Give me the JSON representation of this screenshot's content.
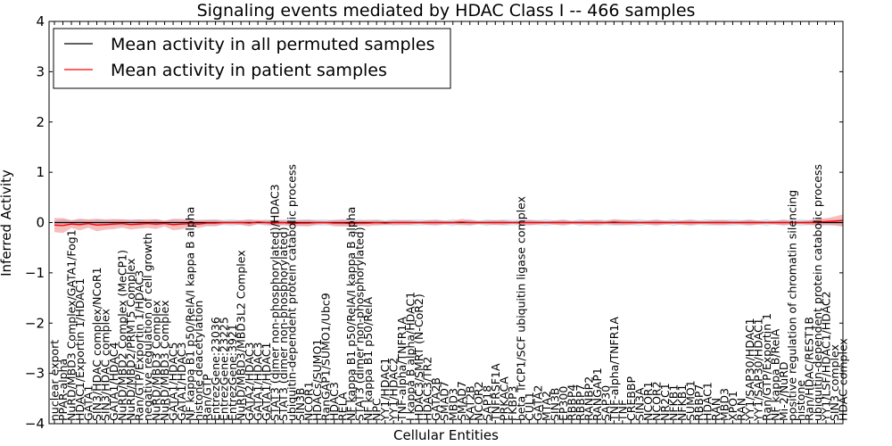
{
  "chart_data": {
    "type": "line",
    "title": "Signaling events mediated by HDAC Class I -- 466 samples",
    "xlabel": "Cellular Entities",
    "ylabel": "Inferred Activity",
    "ylim": [
      -4,
      4
    ],
    "yticks": [
      -4,
      -3,
      -2,
      -1,
      0,
      1,
      2,
      3,
      4
    ],
    "grid": false,
    "legend_position": "top-left",
    "categories": [
      "nuclear export",
      "PPAR-alpha",
      "NuRD/MBD3 Complex/GATA1/Fog1",
      "HDAC1/Exportin 1/HDAC1",
      "GATA1",
      "SIN3/HDAC complex/NCoR1",
      "SIN3/HDAC complex",
      "GATA1/HDAC4",
      "NuRD/MBD2 Complex (MeCP1)",
      "NuRD/MBD2/PRMT5 Complex",
      "Ran/GTP/Exportin 1/HDAC3",
      "negative regulation of cell growth",
      "NuRD/MBD3 Complex",
      "NuRD/MBD3 Complex",
      "GATA1/HDAC5",
      "GATA1/HDAC3",
      "NF kappa B1 p50/RelA/I kappa B alpha",
      "histone deacetylation",
      "Ran/GTP",
      "EntrezGene:23036",
      "EntrezGene:23225",
      "EntrezGene:3921",
      "NuRD/MBD3/MBD3L2 Complex",
      "GATA2/HDAC3",
      "GATA1/HDAC3",
      "GATA1/HDAC1",
      "STAT3 (dimer non-phosphorylated)/HDAC3",
      "STAT3 (dimer non-phosphorylated)",
      "ubiquitin-dependent protein catabolic process",
      "SIN3B",
      "NCOR1",
      "HDACs/SUMO1",
      "RanGAP1/SUMO1/Ubc9",
      "HDAC3",
      "RELA",
      "NF kappa B1 p50/RelA/I kappa B alpha",
      "STAT3 (dimer non-phosphorylated)",
      "NF kappa B1 p50/RelA",
      "NPC",
      "YY1/HDAC1",
      "YY1/HDAC2",
      "TNF-alpha/TNFR1A",
      "I kappa B alpha/HDAC1",
      "HDAC3/SMRT (N-CoR2)",
      "HDAC3/TR2",
      "GATA2B",
      "SMAD7",
      "MBD3",
      "SMAD7",
      "KAT2B",
      "NCOR2",
      "SAP18",
      "TNFRSF1A",
      "PRKACA",
      "FKBP3",
      "beta TrCP1/SCF ubiquitin ligase complex",
      "CUL1",
      "GATA2",
      "MTA2",
      "SIN3B",
      "EP300",
      "RBBP4",
      "RBBP7",
      "RANBP2",
      "RANGAP1",
      "SAP30",
      "TNF-alpha/TNFR1A",
      "TNF",
      "CREBBP",
      "SIN3A",
      "NCOR1",
      "NCOR2",
      "NR2C1",
      "NFKB1",
      "NFKB1",
      "SUMO1",
      "RBBP7",
      "HDAC1",
      "RAN",
      "MBD3",
      "XPO1",
      "RAN",
      "YY1/SAP30/HDAC1",
      "YY1/SAP30/HDAC1",
      "Ran/GTP/Exportin 1",
      "NF kappa B/RelA",
      "Mi-2/NuRD",
      "positive regulation of chromatin silencing",
      "histone",
      "Ran/HDAC/REST1B",
      "ubiquitin-dependent protein catabolic process",
      "YY1/LSF/HDAC1/HDAC2",
      "SIN3 complex",
      "HDAC complex"
    ],
    "series": [
      {
        "name": "Mean activity in all permuted samples",
        "color": "#000000",
        "values": [
          0.0,
          0.0,
          0.0,
          0.0,
          0.0,
          0.0,
          0.0,
          0.0,
          0.0,
          0.0,
          0.0,
          0.0,
          0.0,
          0.0,
          0.0,
          0.0,
          0.0,
          0.0,
          0.0,
          0.0,
          0.0,
          0.0,
          0.0,
          0.0,
          0.0,
          0.0,
          0.0,
          0.0,
          0.0,
          0.0,
          0.0,
          0.0,
          0.0,
          0.0,
          0.0,
          0.0,
          0.0,
          0.0,
          0.0,
          0.0,
          0.0,
          0.0,
          0.0,
          0.0,
          0.0,
          0.0,
          0.0,
          0.0,
          0.0,
          0.0,
          0.0,
          0.0,
          0.0,
          0.0,
          0.0,
          0.0,
          0.0,
          0.0,
          0.0,
          0.0,
          0.0,
          0.0,
          0.0,
          0.0,
          0.0,
          0.0,
          0.0,
          0.0,
          0.0,
          0.0,
          0.0,
          0.0,
          0.0,
          0.0,
          0.0,
          0.0,
          0.0,
          0.0,
          0.0,
          0.0,
          0.0,
          0.0,
          0.0,
          0.0,
          0.0,
          0.0,
          0.0,
          0.0,
          0.0,
          0.0,
          0.0,
          0.0,
          0.0,
          0.0
        ]
      },
      {
        "name": "Mean activity in patient samples",
        "color": "#ff0000",
        "values": [
          -0.05,
          -0.06,
          -0.03,
          -0.04,
          -0.02,
          -0.05,
          -0.04,
          -0.03,
          -0.02,
          -0.04,
          -0.03,
          -0.02,
          -0.03,
          -0.02,
          -0.04,
          -0.03,
          -0.02,
          -0.03,
          -0.01,
          -0.01,
          0.0,
          0.0,
          0.0,
          -0.01,
          0.01,
          0.0,
          -0.01,
          0.0,
          -0.02,
          -0.01,
          -0.01,
          0.0,
          0.0,
          -0.01,
          -0.01,
          -0.02,
          -0.01,
          -0.01,
          0.0,
          -0.01,
          0.0,
          0.0,
          0.0,
          0.0,
          0.0,
          0.0,
          0.0,
          0.0,
          0.01,
          0.0,
          0.0,
          0.0,
          0.0,
          0.0,
          0.0,
          0.0,
          0.0,
          0.0,
          0.0,
          0.0,
          0.0,
          0.0,
          0.0,
          0.0,
          0.0,
          0.0,
          0.01,
          0.0,
          0.0,
          0.0,
          0.0,
          0.0,
          0.0,
          0.0,
          0.0,
          0.0,
          0.0,
          0.0,
          0.0,
          0.0,
          0.0,
          0.0,
          0.0,
          0.0,
          0.0,
          0.0,
          0.0,
          0.0,
          0.0,
          0.0,
          0.01,
          0.02,
          0.03,
          0.04
        ]
      }
    ]
  }
}
